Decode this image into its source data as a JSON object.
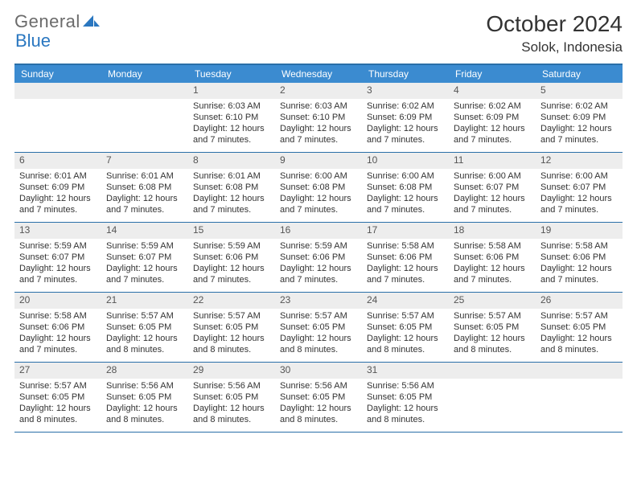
{
  "logo": {
    "text1": "General",
    "text2": "Blue"
  },
  "header": {
    "month_title": "October 2024",
    "location": "Solok, Indonesia"
  },
  "colors": {
    "header_bg": "#3b8bd0",
    "border": "#2a6fa8",
    "daynum_bg": "#ededed",
    "text": "#333333",
    "logo_gray": "#6b6b6b",
    "logo_blue": "#2a77c0"
  },
  "days_of_week": [
    "Sunday",
    "Monday",
    "Tuesday",
    "Wednesday",
    "Thursday",
    "Friday",
    "Saturday"
  ],
  "weeks": [
    [
      null,
      null,
      {
        "n": "1",
        "sr": "6:03 AM",
        "ss": "6:10 PM",
        "dl": "12 hours and 7 minutes."
      },
      {
        "n": "2",
        "sr": "6:03 AM",
        "ss": "6:10 PM",
        "dl": "12 hours and 7 minutes."
      },
      {
        "n": "3",
        "sr": "6:02 AM",
        "ss": "6:09 PM",
        "dl": "12 hours and 7 minutes."
      },
      {
        "n": "4",
        "sr": "6:02 AM",
        "ss": "6:09 PM",
        "dl": "12 hours and 7 minutes."
      },
      {
        "n": "5",
        "sr": "6:02 AM",
        "ss": "6:09 PM",
        "dl": "12 hours and 7 minutes."
      }
    ],
    [
      {
        "n": "6",
        "sr": "6:01 AM",
        "ss": "6:09 PM",
        "dl": "12 hours and 7 minutes."
      },
      {
        "n": "7",
        "sr": "6:01 AM",
        "ss": "6:08 PM",
        "dl": "12 hours and 7 minutes."
      },
      {
        "n": "8",
        "sr": "6:01 AM",
        "ss": "6:08 PM",
        "dl": "12 hours and 7 minutes."
      },
      {
        "n": "9",
        "sr": "6:00 AM",
        "ss": "6:08 PM",
        "dl": "12 hours and 7 minutes."
      },
      {
        "n": "10",
        "sr": "6:00 AM",
        "ss": "6:08 PM",
        "dl": "12 hours and 7 minutes."
      },
      {
        "n": "11",
        "sr": "6:00 AM",
        "ss": "6:07 PM",
        "dl": "12 hours and 7 minutes."
      },
      {
        "n": "12",
        "sr": "6:00 AM",
        "ss": "6:07 PM",
        "dl": "12 hours and 7 minutes."
      }
    ],
    [
      {
        "n": "13",
        "sr": "5:59 AM",
        "ss": "6:07 PM",
        "dl": "12 hours and 7 minutes."
      },
      {
        "n": "14",
        "sr": "5:59 AM",
        "ss": "6:07 PM",
        "dl": "12 hours and 7 minutes."
      },
      {
        "n": "15",
        "sr": "5:59 AM",
        "ss": "6:06 PM",
        "dl": "12 hours and 7 minutes."
      },
      {
        "n": "16",
        "sr": "5:59 AM",
        "ss": "6:06 PM",
        "dl": "12 hours and 7 minutes."
      },
      {
        "n": "17",
        "sr": "5:58 AM",
        "ss": "6:06 PM",
        "dl": "12 hours and 7 minutes."
      },
      {
        "n": "18",
        "sr": "5:58 AM",
        "ss": "6:06 PM",
        "dl": "12 hours and 7 minutes."
      },
      {
        "n": "19",
        "sr": "5:58 AM",
        "ss": "6:06 PM",
        "dl": "12 hours and 7 minutes."
      }
    ],
    [
      {
        "n": "20",
        "sr": "5:58 AM",
        "ss": "6:06 PM",
        "dl": "12 hours and 7 minutes."
      },
      {
        "n": "21",
        "sr": "5:57 AM",
        "ss": "6:05 PM",
        "dl": "12 hours and 8 minutes."
      },
      {
        "n": "22",
        "sr": "5:57 AM",
        "ss": "6:05 PM",
        "dl": "12 hours and 8 minutes."
      },
      {
        "n": "23",
        "sr": "5:57 AM",
        "ss": "6:05 PM",
        "dl": "12 hours and 8 minutes."
      },
      {
        "n": "24",
        "sr": "5:57 AM",
        "ss": "6:05 PM",
        "dl": "12 hours and 8 minutes."
      },
      {
        "n": "25",
        "sr": "5:57 AM",
        "ss": "6:05 PM",
        "dl": "12 hours and 8 minutes."
      },
      {
        "n": "26",
        "sr": "5:57 AM",
        "ss": "6:05 PM",
        "dl": "12 hours and 8 minutes."
      }
    ],
    [
      {
        "n": "27",
        "sr": "5:57 AM",
        "ss": "6:05 PM",
        "dl": "12 hours and 8 minutes."
      },
      {
        "n": "28",
        "sr": "5:56 AM",
        "ss": "6:05 PM",
        "dl": "12 hours and 8 minutes."
      },
      {
        "n": "29",
        "sr": "5:56 AM",
        "ss": "6:05 PM",
        "dl": "12 hours and 8 minutes."
      },
      {
        "n": "30",
        "sr": "5:56 AM",
        "ss": "6:05 PM",
        "dl": "12 hours and 8 minutes."
      },
      {
        "n": "31",
        "sr": "5:56 AM",
        "ss": "6:05 PM",
        "dl": "12 hours and 8 minutes."
      },
      null,
      null
    ]
  ],
  "labels": {
    "sunrise": "Sunrise: ",
    "sunset": "Sunset: ",
    "daylight": "Daylight: "
  }
}
